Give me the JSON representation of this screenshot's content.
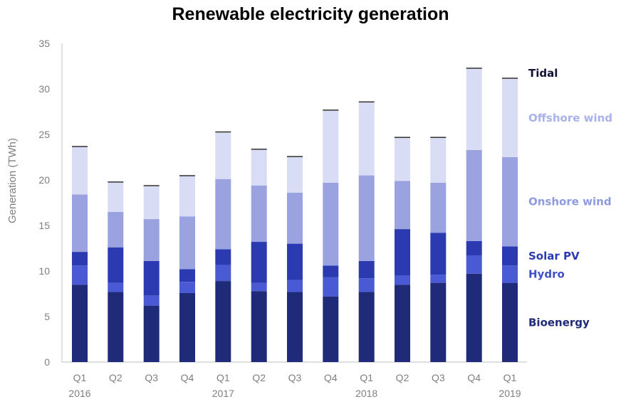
{
  "chart_data": {
    "type": "bar",
    "stacked": true,
    "title": "Renewable electricity generation",
    "xlabel": "",
    "ylabel": "Generation (TWh)",
    "ylim": [
      0,
      35
    ],
    "yticks": [
      0,
      5,
      10,
      15,
      20,
      25,
      30,
      35
    ],
    "grid": false,
    "legend_position": "right, labels aligned with last bar",
    "categories": [
      "Q1",
      "Q2",
      "Q3",
      "Q4",
      "Q1",
      "Q2",
      "Q3",
      "Q4",
      "Q1",
      "Q2",
      "Q3",
      "Q4",
      "Q1"
    ],
    "year_labels": [
      "2016",
      "",
      "",
      "",
      "2017",
      "",
      "",
      "",
      "2018",
      "",
      "",
      "",
      "2019"
    ],
    "series": [
      {
        "name": "Bioenergy",
        "color": "#1f2a78",
        "label_color": "#1f2a78",
        "values": [
          8.5,
          7.7,
          6.2,
          7.6,
          8.9,
          7.8,
          7.7,
          7.2,
          7.7,
          8.5,
          8.7,
          9.7,
          8.7
        ]
      },
      {
        "name": "Hydro",
        "color": "#4a5ad4",
        "label_color": "#3f4fc8",
        "values": [
          2.1,
          1.0,
          1.1,
          1.2,
          1.8,
          0.9,
          1.3,
          2.1,
          1.5,
          1.0,
          0.9,
          2.0,
          1.9
        ]
      },
      {
        "name": "Solar PV",
        "color": "#2b3ab0",
        "label_color": "#2b3ab0",
        "values": [
          1.5,
          3.9,
          3.8,
          1.4,
          1.7,
          4.5,
          4.0,
          1.3,
          1.9,
          5.1,
          4.6,
          1.6,
          2.1
        ]
      },
      {
        "name": "Onshore wind",
        "color": "#9aa3e0",
        "label_color": "#8f9be0",
        "values": [
          6.3,
          3.9,
          4.6,
          5.8,
          7.7,
          6.2,
          5.6,
          9.1,
          9.4,
          5.3,
          5.5,
          10.0,
          9.8
        ]
      },
      {
        "name": "Offshore wind",
        "color": "#d8dcf4",
        "label_color": "#a9b2ec",
        "values": [
          5.2,
          3.2,
          3.6,
          4.4,
          5.1,
          3.9,
          3.9,
          7.9,
          8.0,
          4.7,
          4.9,
          8.9,
          8.6
        ]
      },
      {
        "name": "Tidal",
        "color": "#3a3a3a",
        "label_color": "#111133",
        "values": [
          0.01,
          0.01,
          0.01,
          0.01,
          0.01,
          0.01,
          0.01,
          0.01,
          0.01,
          0.01,
          0.01,
          0.01,
          0.01
        ]
      }
    ]
  }
}
